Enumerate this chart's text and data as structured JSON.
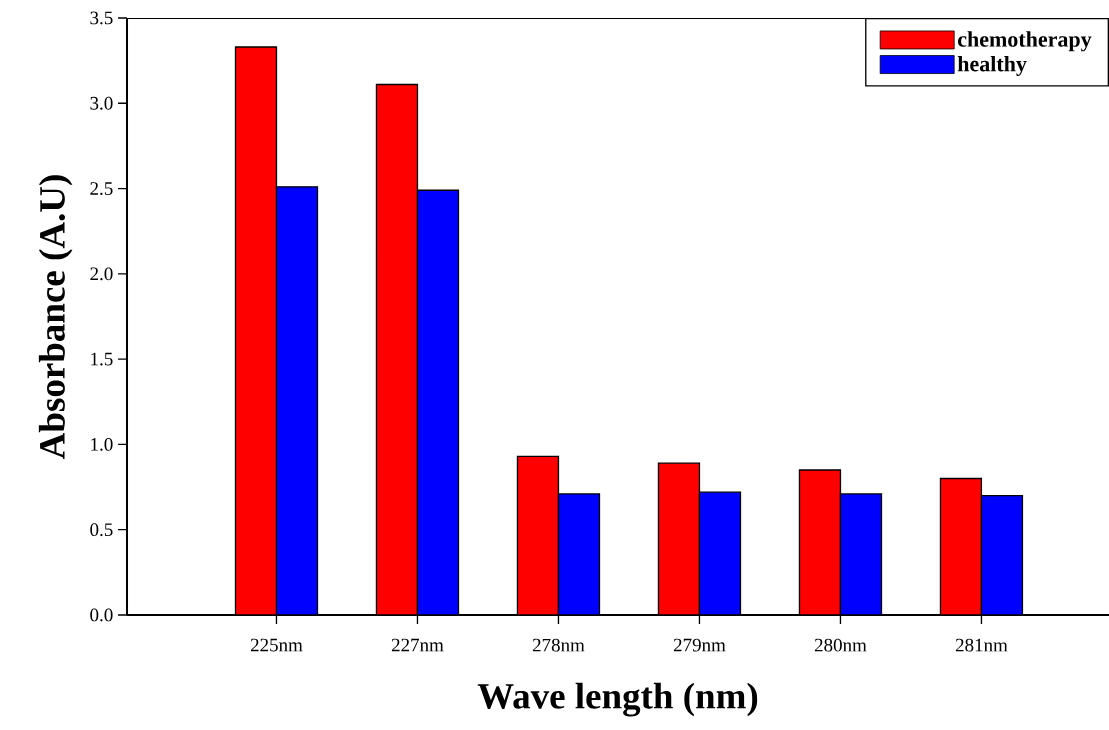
{
  "chart_data": {
    "type": "bar",
    "xlabel": "Wave length (nm)",
    "ylabel": "Absorbance (A.U)",
    "categories": [
      "225nm",
      "227nm",
      "278nm",
      "279nm",
      "280nm",
      "281nm"
    ],
    "series": [
      {
        "name": "chemotherapy",
        "color": "#ff0000",
        "values": [
          3.33,
          3.11,
          0.93,
          0.89,
          0.85,
          0.8
        ]
      },
      {
        "name": "healthy",
        "color": "#0000ff",
        "values": [
          2.51,
          2.49,
          0.71,
          0.72,
          0.71,
          0.7
        ]
      }
    ],
    "ylim": [
      0,
      3.5
    ],
    "yticks": [
      {
        "value": 0,
        "label": "0.0"
      },
      {
        "value": 0.5,
        "label": "0.5"
      },
      {
        "value": 1,
        "label": "1.0"
      },
      {
        "value": 1.5,
        "label": "1.5"
      },
      {
        "value": 2,
        "label": "2.0"
      },
      {
        "value": 2.5,
        "label": "2.5"
      },
      {
        "value": 3,
        "label": "3.0"
      },
      {
        "value": 3.5,
        "label": "3.5"
      }
    ],
    "legend": "top right"
  }
}
